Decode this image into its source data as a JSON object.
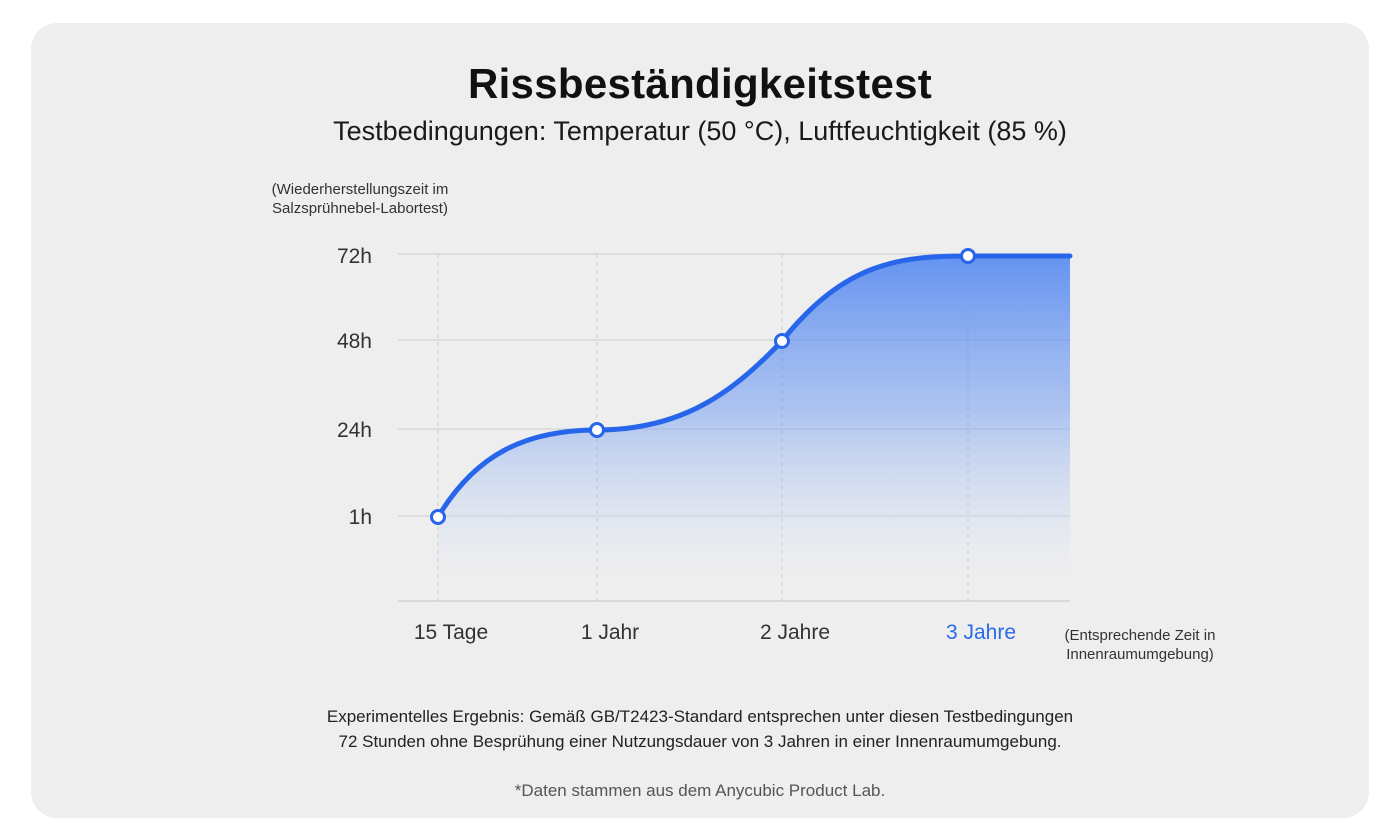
{
  "title": "Rissbeständigkeitstest",
  "subtitle": "Testbedingungen: Temperatur (50 °C), Luftfeuchtigkeit (85 %)",
  "result_lines": [
    "Experimentelles Ergebnis: Gemäß GB/T2423-Standard entsprechen unter diesen Testbedingungen",
    "72 Stunden ohne Besprühung einer Nutzungsdauer von 3 Jahren in einer Innenraumumgebung."
  ],
  "footnote": "*Daten stammen aus dem Anycubic Product Lab.",
  "colors": {
    "line": "#2766ea",
    "highlight_tick": "#2a6ae8",
    "grid": "#cfcfcf",
    "card": "#eeeeee"
  },
  "chart_data": {
    "type": "area",
    "ylabel_lines": [
      "(Wiederherstellungszeit im",
      "Salzsprühnebel-Labortest)"
    ],
    "xlabel_lines": [
      "(Entsprechende Zeit in",
      "Innenraumumgebung)"
    ],
    "categories": [
      "15 Tage",
      "1 Jahr",
      "2 Jahre",
      "3 Jahre"
    ],
    "highlight_category": "3 Jahre",
    "yticks": [
      "1h",
      "24h",
      "48h",
      "72h"
    ],
    "values": [
      "1h",
      "24h",
      "48h",
      "72h"
    ],
    "curve": "smooth",
    "area_fill": "gradient",
    "line_extends_past_last_point": true,
    "grid": true
  }
}
